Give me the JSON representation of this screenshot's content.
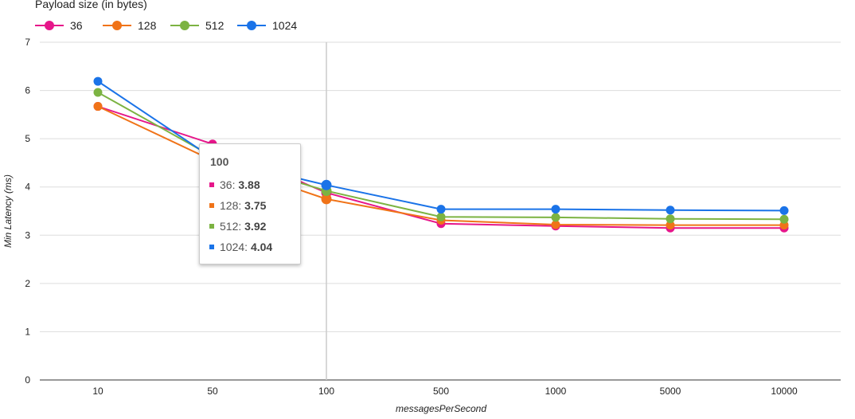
{
  "chart_data": {
    "type": "line",
    "legend_title": "Payload size (in bytes)",
    "legend_position": "top-left",
    "xlabel": "messagesPerSecond",
    "ylabel": "Min Latency (ms)",
    "ylim": [
      0,
      7
    ],
    "yticks": [
      "0",
      "1",
      "2",
      "3",
      "4",
      "5",
      "6",
      "7"
    ],
    "grid": true,
    "categories": [
      "10",
      "50",
      "100",
      "500",
      "1000",
      "5000",
      "10000"
    ],
    "series": [
      {
        "name": "36",
        "color": "#e6168a",
        "values": [
          5.67,
          4.89,
          3.88,
          3.24,
          3.19,
          3.15,
          3.15
        ]
      },
      {
        "name": "128",
        "color": "#f07318",
        "values": [
          5.67,
          4.55,
          3.75,
          3.31,
          3.22,
          3.21,
          3.21
        ]
      },
      {
        "name": "512",
        "color": "#7cb342",
        "values": [
          5.96,
          4.63,
          3.92,
          3.38,
          3.37,
          3.34,
          3.33
        ]
      },
      {
        "name": "1024",
        "color": "#1a73e8",
        "values": [
          6.19,
          4.6,
          4.04,
          3.54,
          3.54,
          3.52,
          3.51
        ]
      }
    ],
    "tooltip": {
      "title": "100",
      "rows": [
        {
          "label": "36: ",
          "value": "3.88",
          "color": "#e6168a"
        },
        {
          "label": "128: ",
          "value": "3.75",
          "color": "#f07318"
        },
        {
          "label": "512: ",
          "value": "3.92",
          "color": "#7cb342"
        },
        {
          "label": "1024: ",
          "value": "4.04",
          "color": "#1a73e8"
        }
      ]
    }
  }
}
